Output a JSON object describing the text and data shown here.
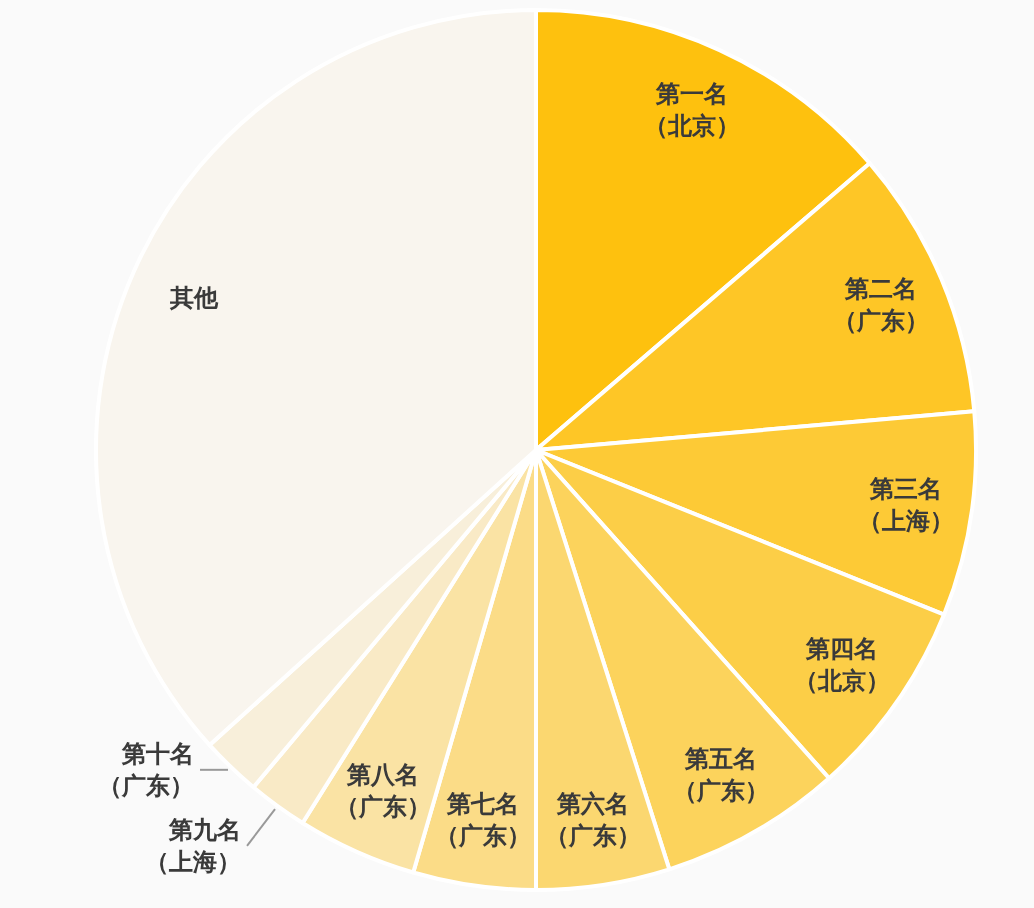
{
  "chart_data": {
    "type": "pie",
    "categories": [
      "第一名（北京）",
      "第二名（广东）",
      "第三名（上海）",
      "第四名（北京）",
      "第五名（广东）",
      "第六名（广东）",
      "第七名（广东）",
      "第八名（广东）",
      "第九名（上海）",
      "第十名（广东）",
      "其他"
    ],
    "values": [
      13.7,
      9.9,
      7.5,
      7.3,
      6.7,
      4.9,
      4.5,
      4.4,
      2.2,
      2.2,
      36.7
    ],
    "colors": [
      "#fec10e",
      "#fec626",
      "#fdca36",
      "#fcce47",
      "#fcd35c",
      "#fbd770",
      "#fbdc87",
      "#fae3a4",
      "#f9eac6",
      "#f8efda",
      "#f9f5ee"
    ]
  }
}
